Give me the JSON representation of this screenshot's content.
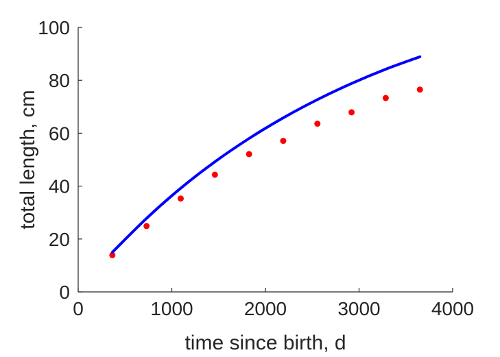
{
  "chart_data": {
    "type": "scatter",
    "title": "",
    "xlabel": "time since birth, d",
    "ylabel": "total length, cm",
    "xlim": [
      0,
      4000
    ],
    "ylim": [
      0,
      100
    ],
    "xticks": [
      0,
      1000,
      2000,
      3000,
      4000
    ],
    "yticks": [
      0,
      20,
      40,
      60,
      80,
      100
    ],
    "grid": false,
    "legend": "none",
    "series": [
      {
        "kind": "scatter",
        "color": "#ff0000",
        "x": [
          365,
          730,
          1095,
          1460,
          1825,
          2190,
          2555,
          2920,
          3285,
          3650
        ],
        "y": [
          13.9,
          24.9,
          35.3,
          44.3,
          52.1,
          57.1,
          63.6,
          67.9,
          73.3,
          76.5
        ]
      },
      {
        "kind": "line",
        "color": "#0000ff",
        "x": [
          365,
          730,
          1095,
          1460,
          1825,
          2190,
          2555,
          2920,
          3285,
          3650
        ],
        "y": [
          15.0,
          27.8,
          39.2,
          49.2,
          58.0,
          65.8,
          72.7,
          78.8,
          84.2,
          88.9
        ]
      }
    ]
  }
}
